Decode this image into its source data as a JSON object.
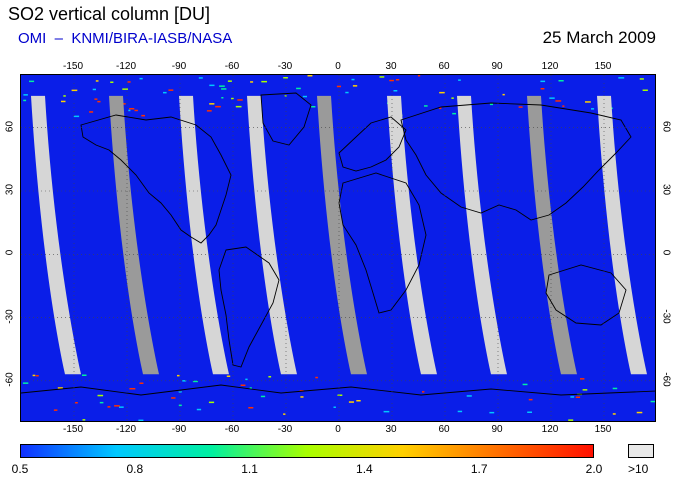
{
  "title": "SO2 vertical column [DU]",
  "subtitle": "OMI  –  KNMI/BIRA-IASB/NASA",
  "date": "25 March 2009",
  "map": {
    "lon_ticks": [
      "-150",
      "-120",
      "-90",
      "-60",
      "-30",
      "0",
      "30",
      "60",
      "90",
      "120",
      "150"
    ],
    "lat_ticks": [
      "60",
      "30",
      "0",
      "-30",
      "-60"
    ],
    "lon_range": [
      -180,
      180
    ],
    "lat_range": [
      -80,
      85
    ],
    "colors": {
      "field": "#0a1ee8",
      "gap": "#d6d6d6",
      "gap_dark": "#9a9a9a",
      "coast": "#000000",
      "grid": "#555555"
    }
  },
  "colorbar": {
    "ticks": [
      "0.5",
      "0.8",
      "1.1",
      "1.4",
      "1.7",
      "2.0"
    ],
    "min": 0.5,
    "max": 2.0,
    "over_label": ">10",
    "gradient": [
      "#1030ff",
      "#00c8ff",
      "#00f0a0",
      "#a8ff00",
      "#ffd000",
      "#ff7000",
      "#ff1000"
    ]
  }
}
